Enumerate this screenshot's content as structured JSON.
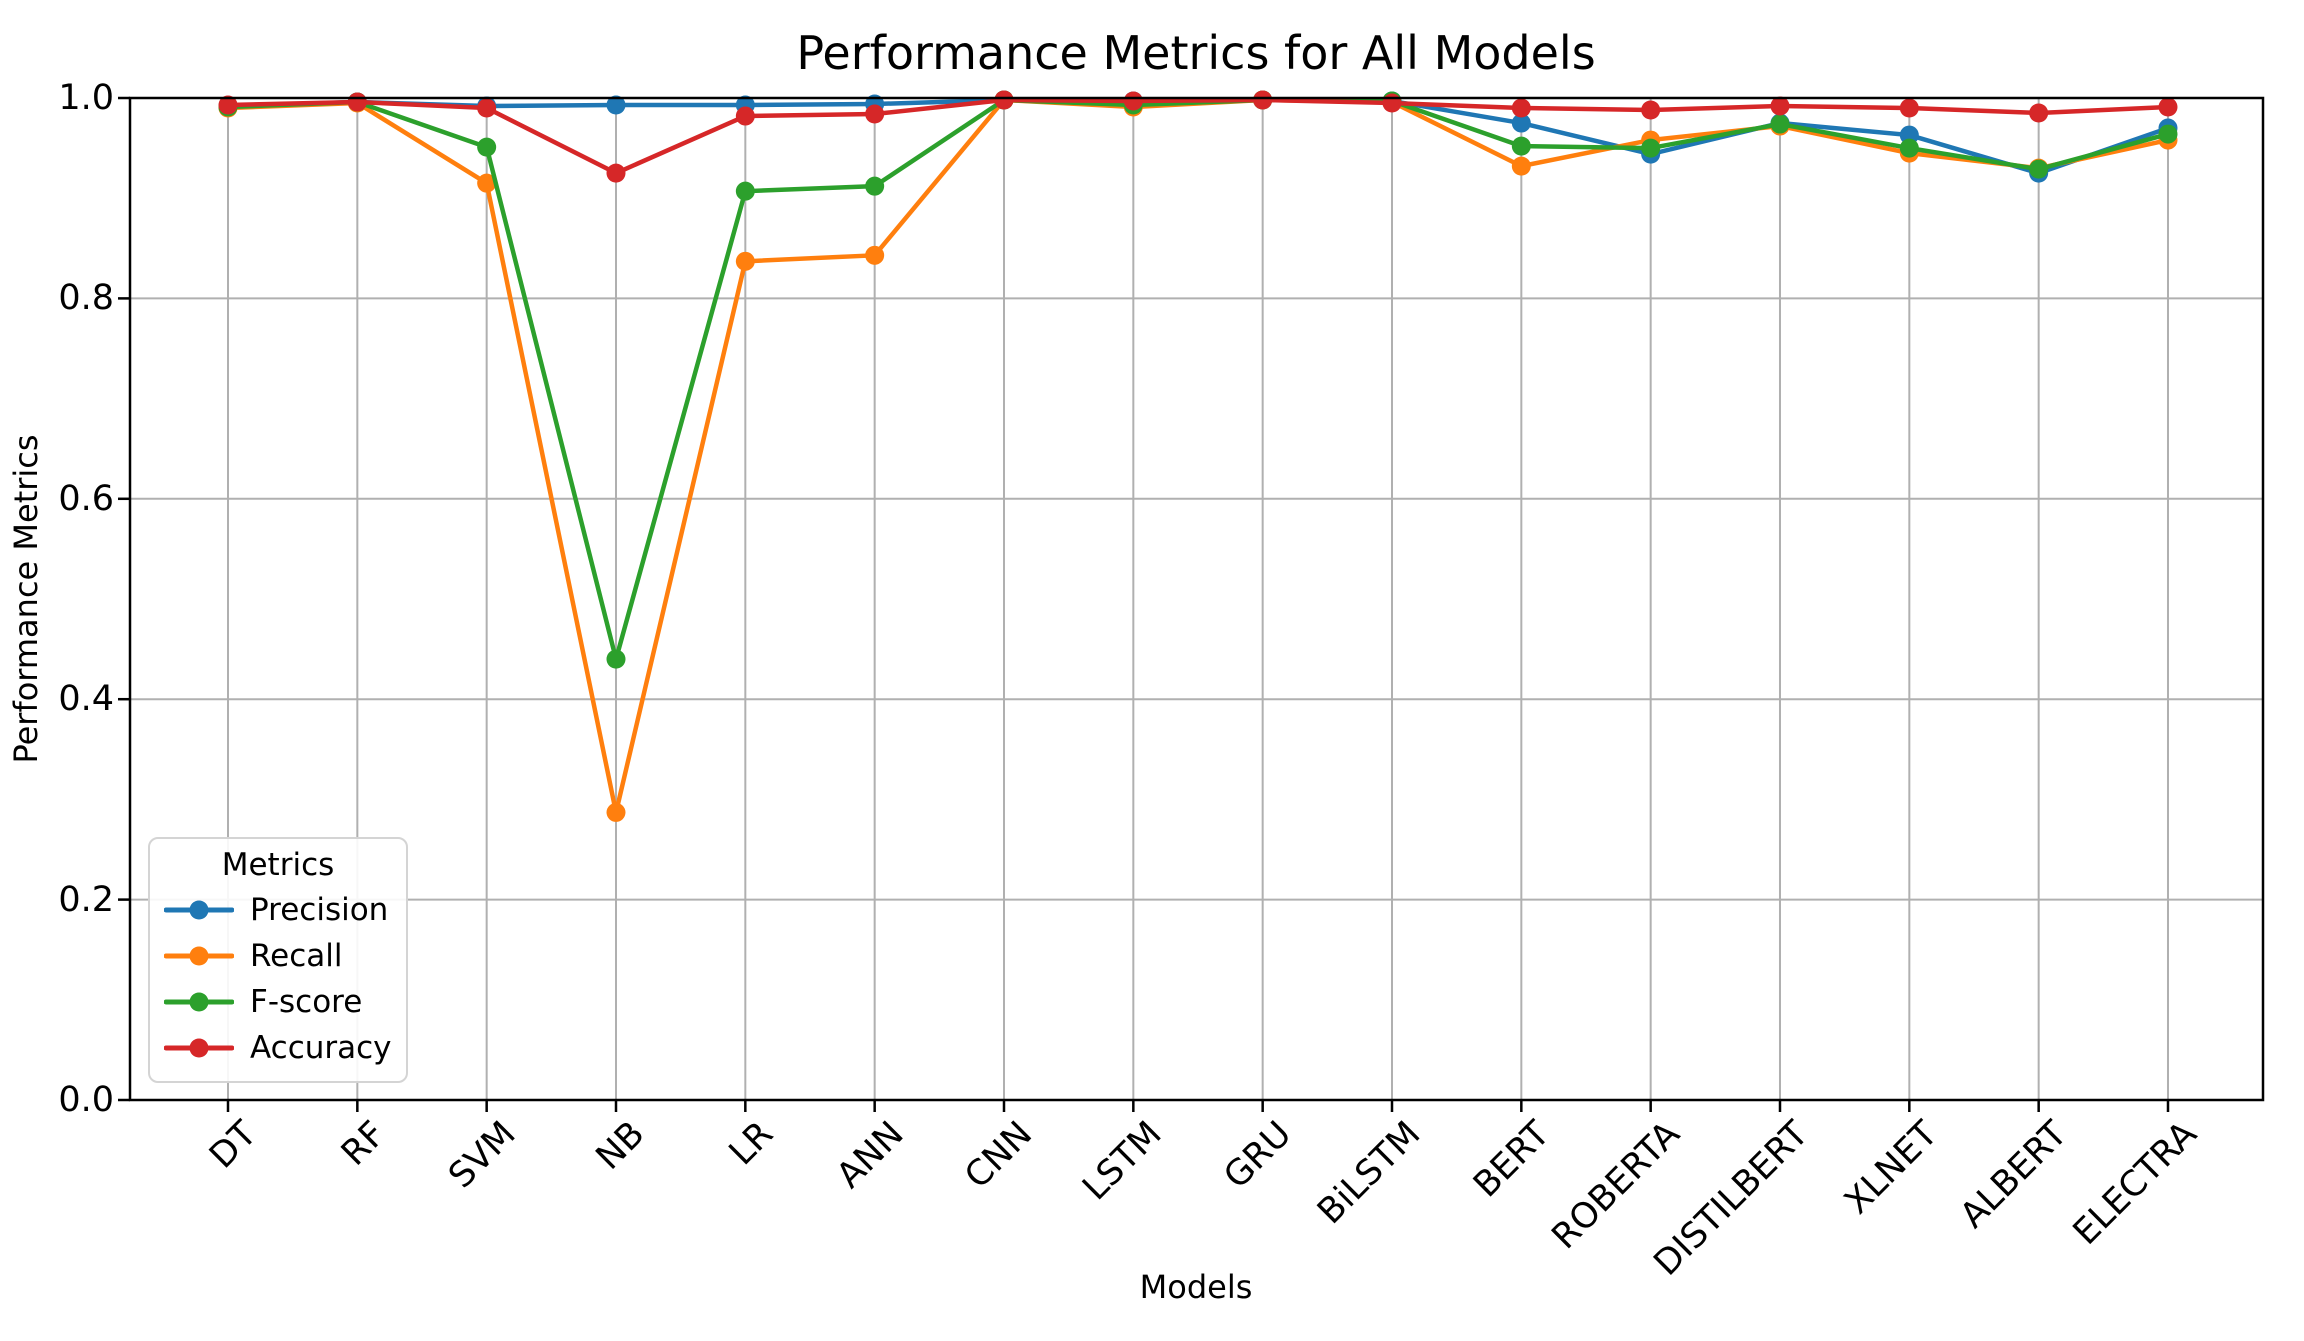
{
  "chart_data": {
    "type": "line",
    "title": "Performance Metrics for All Models",
    "xlabel": "Models",
    "ylabel": "Performance Metrics",
    "legend_title": "Metrics",
    "legend_position": "lower left",
    "grid": true,
    "ylim": [
      0.0,
      1.0
    ],
    "yticks": [
      "0.0",
      "0.2",
      "0.4",
      "0.6",
      "0.8",
      "1.0"
    ],
    "categories": [
      "DT",
      "RF",
      "SVM",
      "NB",
      "LR",
      "ANN",
      "CNN",
      "LSTM",
      "GRU",
      "BiLSTM",
      "BERT",
      "ROBERTA",
      "DISTILBERT",
      "XLNET",
      "ALBERT",
      "ELECTRA"
    ],
    "series": [
      {
        "name": "Precision",
        "color": "#1f77b4",
        "values": [
          0.992,
          0.996,
          0.992,
          0.993,
          0.993,
          0.994,
          0.998,
          0.997,
          0.998,
          0.997,
          0.975,
          0.944,
          0.975,
          0.963,
          0.925,
          0.97
        ]
      },
      {
        "name": "Recall",
        "color": "#ff7f0e",
        "values": [
          0.99,
          0.995,
          0.915,
          0.287,
          0.837,
          0.843,
          0.998,
          0.991,
          0.998,
          0.996,
          0.932,
          0.958,
          0.972,
          0.945,
          0.93,
          0.958
        ]
      },
      {
        "name": "F-score",
        "color": "#2ca02c",
        "values": [
          0.991,
          0.996,
          0.951,
          0.44,
          0.907,
          0.912,
          0.998,
          0.993,
          0.998,
          0.997,
          0.952,
          0.95,
          0.974,
          0.95,
          0.929,
          0.964
        ]
      },
      {
        "name": "Accuracy",
        "color": "#d62728",
        "values": [
          0.993,
          0.996,
          0.99,
          0.925,
          0.982,
          0.984,
          0.998,
          0.997,
          0.998,
          0.995,
          0.99,
          0.988,
          0.992,
          0.99,
          0.985,
          0.991
        ]
      }
    ]
  }
}
